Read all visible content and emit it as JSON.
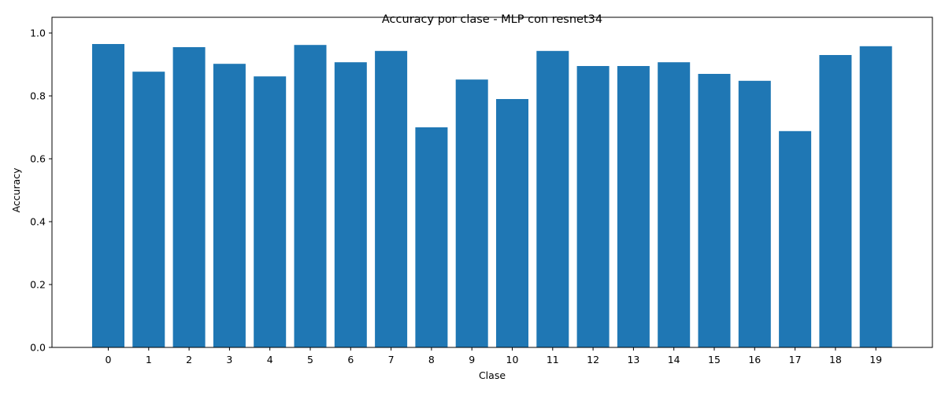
{
  "chart_data": {
    "type": "bar",
    "title": "Accuracy por clase - MLP con resnet34",
    "xlabel": "Clase",
    "ylabel": "Accuracy",
    "categories": [
      "0",
      "1",
      "2",
      "3",
      "4",
      "5",
      "6",
      "7",
      "8",
      "9",
      "10",
      "11",
      "12",
      "13",
      "14",
      "15",
      "16",
      "17",
      "18",
      "19"
    ],
    "values": [
      0.965,
      0.877,
      0.955,
      0.902,
      0.862,
      0.962,
      0.907,
      0.943,
      0.7,
      0.852,
      0.79,
      0.943,
      0.895,
      0.895,
      0.907,
      0.87,
      0.848,
      0.688,
      0.93,
      0.958
    ],
    "ylim": [
      0,
      1.0
    ],
    "yticks": [
      "0.0",
      "0.2",
      "0.4",
      "0.6",
      "0.8",
      "1.0"
    ],
    "grid": false,
    "legend": "none",
    "bar_color": "#1f77b4"
  }
}
